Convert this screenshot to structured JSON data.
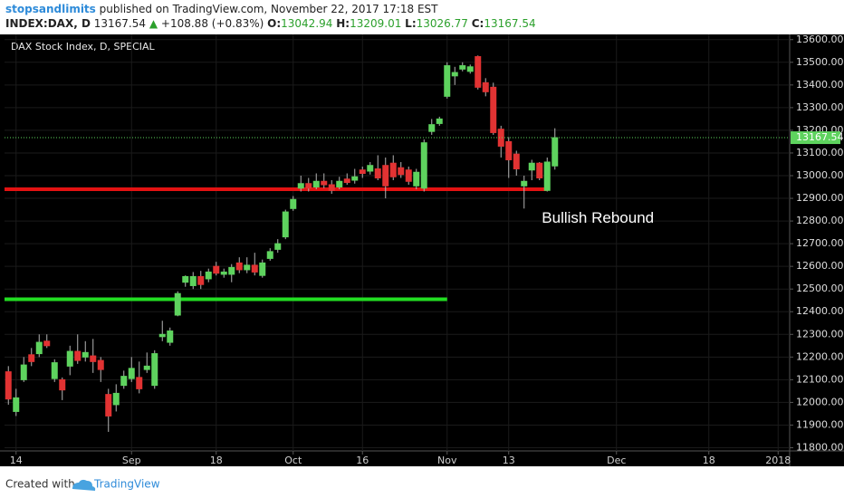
{
  "header": {
    "author": "stopsandlimits",
    "published": "published on TradingView.com, November 22, 2017 17:18 EST",
    "symbol": "INDEX:DAX, D",
    "last": "13167.54",
    "arrow": "▲",
    "change": "+108.88 (+0.83%)",
    "ohlc": [
      {
        "label": "O:",
        "value": "13042.94"
      },
      {
        "label": "H:",
        "value": "13209.01"
      },
      {
        "label": "L:",
        "value": "13026.77"
      },
      {
        "label": "C:",
        "value": "13167.54"
      }
    ]
  },
  "chart_data": {
    "type": "candlestick",
    "title": "DAX Stock Index, D, SPECIAL",
    "open": [
      12135,
      11960,
      12100,
      12210,
      12215,
      12270,
      12105,
      12100,
      12160,
      12225,
      12200,
      12205,
      12185,
      12035,
      11990,
      12075,
      12105,
      12110,
      12145,
      12075,
      12290,
      12265,
      12385,
      12530,
      12515,
      12555,
      12545,
      12600,
      12565,
      12565,
      12615,
      12585,
      12605,
      12560,
      12635,
      12675,
      12730,
      12855,
      12945,
      12965,
      12950,
      12975,
      12960,
      12950,
      12985,
      12980,
      13025,
      13020,
      13030,
      13045,
      13055,
      13035,
      13025,
      12955,
      12945,
      13195,
      13230,
      13350,
      13440,
      13470,
      13460,
      13525,
      13410,
      13390,
      13205,
      13150,
      13095,
      12955,
      13025,
      13055,
      12935,
      13042.94
    ],
    "high": [
      12160,
      12060,
      12200,
      12240,
      12300,
      12300,
      12190,
      12110,
      12250,
      12300,
      12270,
      12280,
      12200,
      12060,
      12080,
      12140,
      12200,
      12180,
      12220,
      12230,
      12360,
      12330,
      12490,
      12560,
      12575,
      12580,
      12590,
      12620,
      12590,
      12610,
      12640,
      12640,
      12660,
      12630,
      12680,
      12720,
      12850,
      12910,
      13000,
      12990,
      13010,
      13010,
      12980,
      12995,
      13010,
      13030,
      13040,
      13060,
      13090,
      13080,
      13090,
      13060,
      13040,
      13030,
      13160,
      13250,
      13260,
      13500,
      13480,
      13500,
      13490,
      13530,
      13430,
      13410,
      13220,
      13170,
      13110,
      13000,
      13070,
      13060,
      13080,
      13209.01
    ],
    "low": [
      11990,
      11940,
      12090,
      12160,
      12200,
      12240,
      12090,
      12010,
      12120,
      12170,
      12180,
      12130,
      12090,
      11870,
      11960,
      12060,
      12090,
      12040,
      12130,
      12060,
      12270,
      12250,
      12380,
      12510,
      12500,
      12500,
      12530,
      12560,
      12550,
      12530,
      12570,
      12570,
      12560,
      12550,
      12625,
      12660,
      12720,
      12845,
      12930,
      12930,
      12940,
      12945,
      12920,
      12940,
      12960,
      12965,
      12990,
      13005,
      12980,
      12900,
      12980,
      12990,
      12960,
      12940,
      12930,
      13180,
      13220,
      13340,
      13400,
      13460,
      13450,
      13380,
      13350,
      13180,
      13080,
      12990,
      13000,
      12855,
      12980,
      12980,
      12930,
      13026.77
    ],
    "close": [
      12015,
      12020,
      12165,
      12180,
      12265,
      12250,
      12175,
      12055,
      12225,
      12185,
      12220,
      12180,
      12145,
      11940,
      12040,
      12115,
      12150,
      12060,
      12160,
      12215,
      12300,
      12315,
      12480,
      12555,
      12555,
      12520,
      12575,
      12570,
      12575,
      12595,
      12585,
      12605,
      12575,
      12615,
      12665,
      12700,
      12840,
      12895,
      12965,
      12945,
      12975,
      12960,
      12935,
      12975,
      12970,
      12995,
      13010,
      13045,
      12990,
      12955,
      12995,
      13005,
      12975,
      13015,
      13145,
      13225,
      13250,
      13485,
      13455,
      13485,
      13480,
      13390,
      13370,
      13190,
      13130,
      13070,
      13030,
      12975,
      13055,
      12990,
      13060,
      13167.54
    ],
    "up_color": "#5ed35e",
    "down_color": "#e23333",
    "wick_color": "#b4b4b4",
    "xlim": [
      -0.5,
      101.5
    ],
    "xticks": [
      {
        "value": 1,
        "label": "14"
      },
      {
        "value": 16,
        "label": "Sep"
      },
      {
        "value": 27,
        "label": "18"
      },
      {
        "value": 37,
        "label": "Oct"
      },
      {
        "value": 46,
        "label": "16"
      },
      {
        "value": 57,
        "label": "Nov"
      },
      {
        "value": 65,
        "label": "13"
      },
      {
        "value": 79,
        "label": "Dec"
      },
      {
        "value": 91,
        "label": "18"
      },
      {
        "value": 100,
        "label": "2018"
      }
    ],
    "ylim": [
      11790,
      13615
    ],
    "yticks": [
      {
        "value": 11800,
        "label": "11800.00"
      },
      {
        "value": 11900,
        "label": "11900.00"
      },
      {
        "value": 12000,
        "label": "12000.00"
      },
      {
        "value": 12100,
        "label": "12100.00"
      },
      {
        "value": 12200,
        "label": "12200.00"
      },
      {
        "value": 12300,
        "label": "12300.00"
      },
      {
        "value": 12400,
        "label": "12400.00"
      },
      {
        "value": 12500,
        "label": "12500.00"
      },
      {
        "value": 12600,
        "label": "12600.00"
      },
      {
        "value": 12700,
        "label": "12700.00"
      },
      {
        "value": 12800,
        "label": "12800.00"
      },
      {
        "value": 12900,
        "label": "12900.00"
      },
      {
        "value": 13000,
        "label": "13000.00"
      },
      {
        "value": 13100,
        "label": "13100.00"
      },
      {
        "value": 13200,
        "label": "13200.00"
      },
      {
        "value": 13300,
        "label": "13300.00"
      },
      {
        "value": 13400,
        "label": "13400.00"
      },
      {
        "value": 13500,
        "label": "13500.00"
      },
      {
        "value": 13600,
        "label": "13600.00"
      }
    ],
    "grid": true,
    "levels": [
      {
        "value": 12940,
        "color": "#e31212",
        "x": [
          -0.5,
          70
        ]
      },
      {
        "value": 12455,
        "color": "#22dd22",
        "x": [
          -0.5,
          57
        ]
      }
    ],
    "annotation": {
      "text": "Bullish Rebound",
      "x": 69.3,
      "y": 12810
    }
  },
  "footer": {
    "created_with": "Created with",
    "brand": "TradingView"
  }
}
